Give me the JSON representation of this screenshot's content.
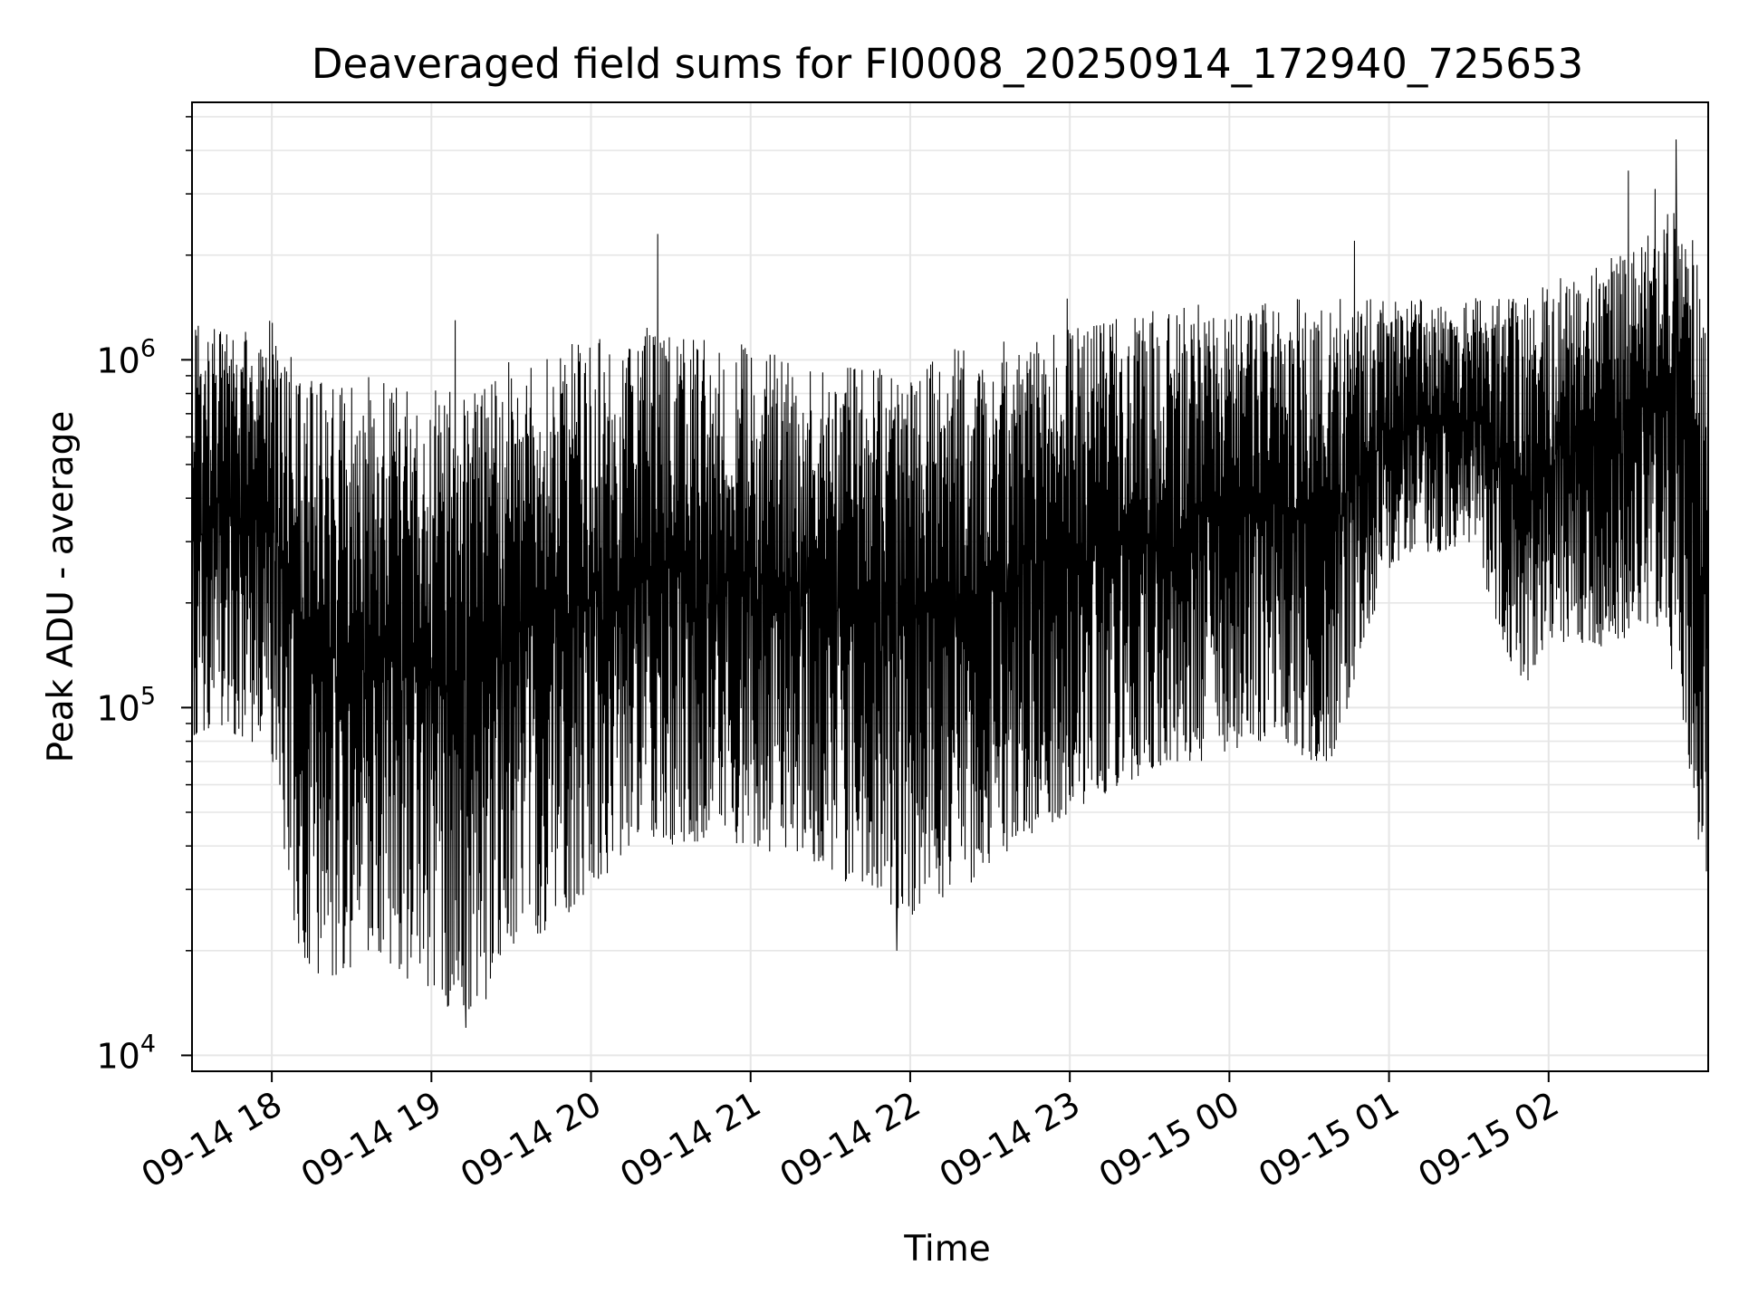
{
  "chart_data": {
    "type": "line",
    "title": "Deaveraged field sums for FI0008_20250914_172940_725653",
    "xlabel": "Time",
    "ylabel": "Peak ADU - average",
    "yscale": "log",
    "ylim": [
      9000,
      5500000
    ],
    "xlim": [
      "2025-09-14 17:30",
      "2025-09-15 03:00"
    ],
    "grid": true,
    "line_color": "#000000",
    "grid_color": "#e6e6e6",
    "x_ticks": [
      {
        "label": "09-14 18",
        "t": "2025-09-14 18:00"
      },
      {
        "label": "09-14 19",
        "t": "2025-09-14 19:00"
      },
      {
        "label": "09-14 20",
        "t": "2025-09-14 20:00"
      },
      {
        "label": "09-14 21",
        "t": "2025-09-14 21:00"
      },
      {
        "label": "09-14 22",
        "t": "2025-09-14 22:00"
      },
      {
        "label": "09-14 23",
        "t": "2025-09-14 23:00"
      },
      {
        "label": "09-15 00",
        "t": "2025-09-15 00:00"
      },
      {
        "label": "09-15 01",
        "t": "2025-09-15 01:00"
      },
      {
        "label": "09-15 02",
        "t": "2025-09-15 02:00"
      }
    ],
    "y_ticks": [
      {
        "base": "10",
        "exp": "4",
        "value": 10000
      },
      {
        "base": "10",
        "exp": "5",
        "value": 100000
      },
      {
        "base": "10",
        "exp": "6",
        "value": 1000000
      }
    ],
    "series": [
      {
        "x": [
          "2025-09-14 17:30",
          "2025-09-14 17:40",
          "2025-09-14 17:50",
          "2025-09-14 18:00",
          "2025-09-14 18:10",
          "2025-09-14 18:20",
          "2025-09-14 18:30",
          "2025-09-14 18:40",
          "2025-09-14 18:50",
          "2025-09-14 19:00",
          "2025-09-14 19:10",
          "2025-09-14 19:20",
          "2025-09-14 19:30",
          "2025-09-14 19:40",
          "2025-09-14 19:50",
          "2025-09-14 20:00",
          "2025-09-14 20:10",
          "2025-09-14 20:20",
          "2025-09-14 20:30",
          "2025-09-14 20:40",
          "2025-09-14 20:50",
          "2025-09-14 21:00",
          "2025-09-14 21:10",
          "2025-09-14 21:20",
          "2025-09-14 21:30",
          "2025-09-14 21:40",
          "2025-09-14 21:50",
          "2025-09-14 22:00",
          "2025-09-14 22:10",
          "2025-09-14 22:20",
          "2025-09-14 22:30",
          "2025-09-14 22:40",
          "2025-09-14 22:50",
          "2025-09-14 23:00",
          "2025-09-14 23:10",
          "2025-09-14 23:20",
          "2025-09-14 23:30",
          "2025-09-14 23:40",
          "2025-09-14 23:50",
          "2025-09-15 00:00",
          "2025-09-15 00:10",
          "2025-09-15 00:20",
          "2025-09-15 00:30",
          "2025-09-15 00:40",
          "2025-09-15 00:50",
          "2025-09-15 01:00",
          "2025-09-15 01:10",
          "2025-09-15 01:20",
          "2025-09-15 01:30",
          "2025-09-15 01:40",
          "2025-09-15 01:50",
          "2025-09-15 02:00",
          "2025-09-15 02:10",
          "2025-09-15 02:20",
          "2025-09-15 02:30",
          "2025-09-15 02:40",
          "2025-09-15 02:50",
          "2025-09-15 03:00"
        ],
        "y_low": [
          80000,
          90000,
          80000,
          70000,
          20000,
          16000,
          18000,
          20000,
          16000,
          15000,
          13000,
          14000,
          20000,
          22000,
          25000,
          30000,
          35000,
          40000,
          40000,
          40000,
          40000,
          40000,
          38000,
          38000,
          33000,
          30000,
          28000,
          25000,
          28000,
          30000,
          35000,
          40000,
          45000,
          50000,
          55000,
          60000,
          65000,
          70000,
          70000,
          75000,
          80000,
          80000,
          70000,
          70000,
          150000,
          250000,
          280000,
          280000,
          300000,
          180000,
          110000,
          160000,
          150000,
          150000,
          160000,
          180000,
          100000,
          25000
        ],
        "y_high": [
          1300000,
          1300000,
          1250000,
          1300000,
          950000,
          850000,
          900000,
          900000,
          850000,
          850000,
          800000,
          900000,
          1000000,
          1050000,
          1100000,
          1150000,
          1150000,
          1250000,
          1200000,
          1200000,
          1150000,
          1100000,
          1050000,
          1000000,
          950000,
          950000,
          950000,
          950000,
          1050000,
          1100000,
          1150000,
          1200000,
          1200000,
          1250000,
          1300000,
          1350000,
          1400000,
          1400000,
          1450000,
          1500000,
          1550000,
          1500000,
          1500000,
          1500000,
          1500000,
          1500000,
          1500000,
          1500000,
          1500000,
          1550000,
          1500000,
          1700000,
          1800000,
          2000000,
          2200000,
          2700000,
          3000000,
          1500000
        ]
      }
    ],
    "spikes": [
      {
        "t": "2025-09-14 20:25",
        "y": 2300000
      },
      {
        "t": "2025-09-14 19:09",
        "y": 1300000
      },
      {
        "t": "2025-09-14 22:59",
        "y": 1500000
      },
      {
        "t": "2025-09-15 00:47",
        "y": 2200000
      },
      {
        "t": "2025-09-15 02:30",
        "y": 3500000
      },
      {
        "t": "2025-09-15 02:48",
        "y": 4300000
      },
      {
        "t": "2025-09-15 02:40",
        "y": 3100000
      },
      {
        "t": "2025-09-14 21:55",
        "y": 20000
      },
      {
        "t": "2025-09-14 19:13",
        "y": 12000
      }
    ]
  }
}
